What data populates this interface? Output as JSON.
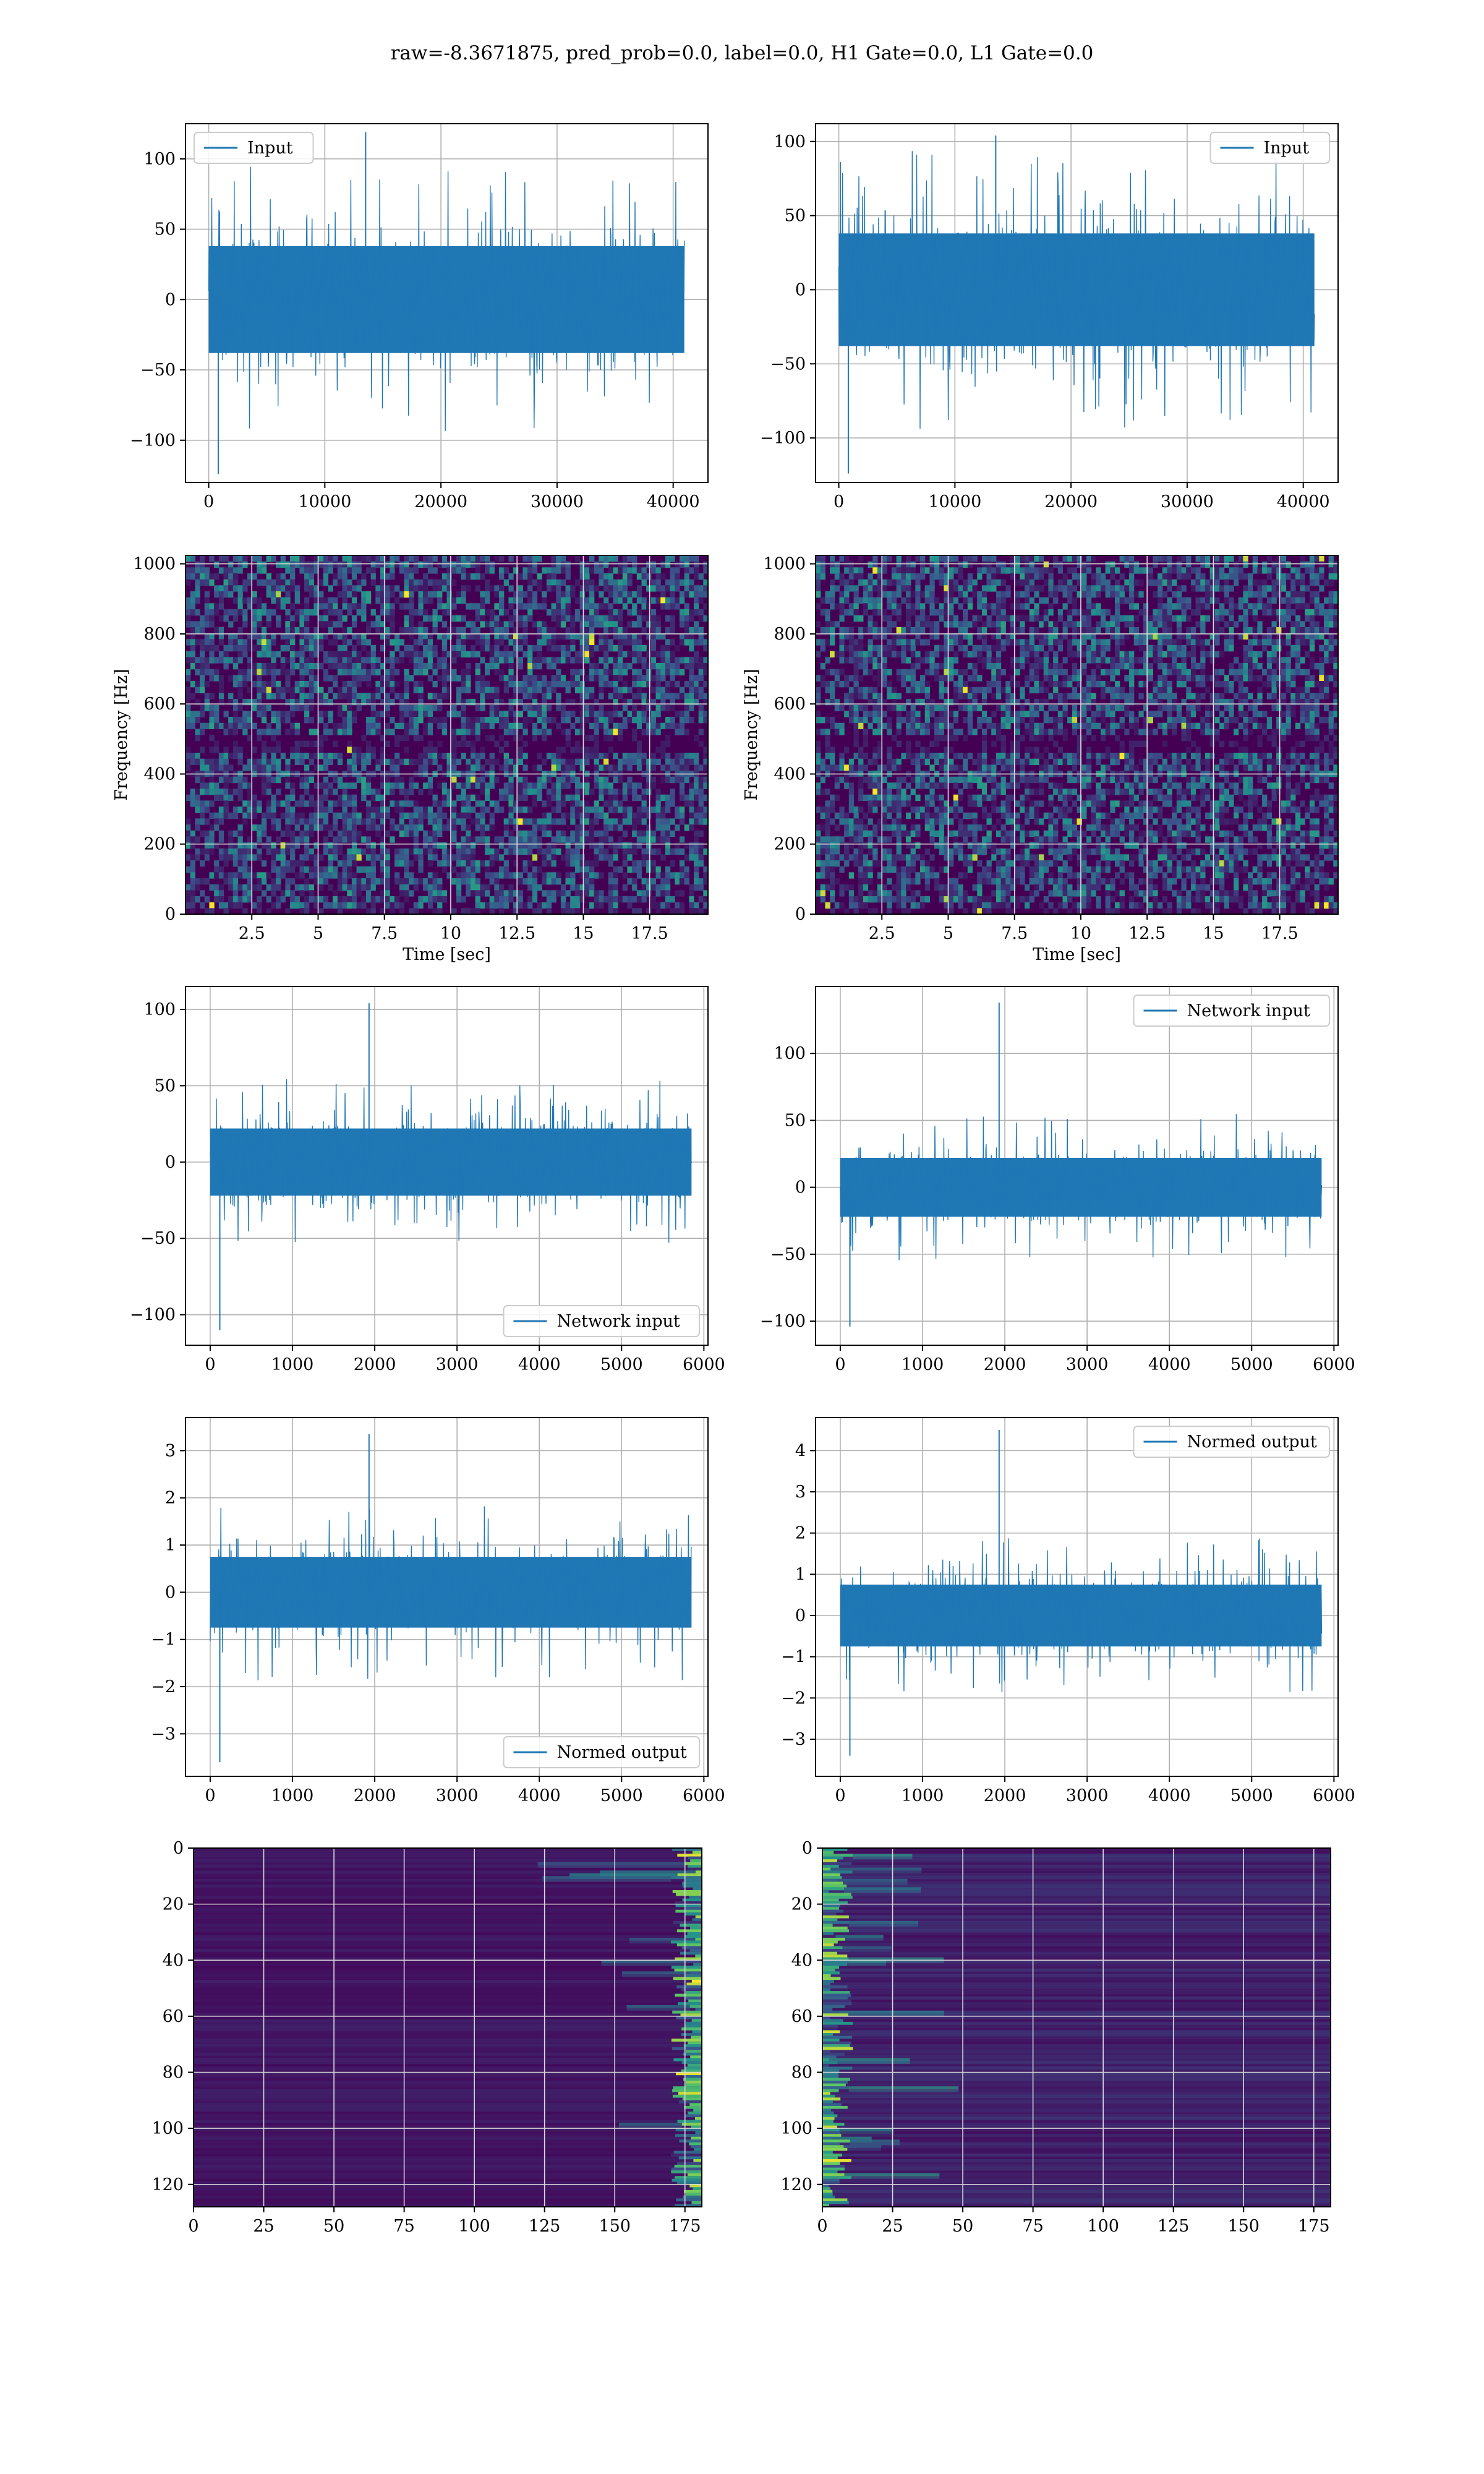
{
  "suptitle": "raw=-8.3671875, pred_prob=0.0, label=0.0, H1 Gate=0.0, L1 Gate=0.0",
  "colors": {
    "line": "#1f77b4",
    "grid": "#b0b0b0",
    "heat_low": "#440154",
    "heat_high": "#fde725"
  },
  "chart_data": [
    {
      "id": "row1-left",
      "type": "line",
      "legend": {
        "label": "Input",
        "position": "upper left"
      },
      "xlim": [
        -2000,
        43000
      ],
      "ylim": [
        -130,
        125
      ],
      "xticks": [
        0,
        10000,
        20000,
        30000,
        40000
      ],
      "yticks": [
        -100,
        -50,
        0,
        50,
        100
      ],
      "xlabel": "",
      "ylabel": "",
      "grid": true,
      "signal": {
        "x_start": 0,
        "x_end": 40960,
        "body_amplitude": 38,
        "peak_max": 119,
        "peak_min": -124
      }
    },
    {
      "id": "row1-right",
      "type": "line",
      "legend": {
        "label": "Input",
        "position": "upper right"
      },
      "xlim": [
        -2000,
        43000
      ],
      "ylim": [
        -130,
        112
      ],
      "xticks": [
        0,
        10000,
        20000,
        30000,
        40000
      ],
      "yticks": [
        -100,
        -50,
        0,
        50,
        100
      ],
      "xlabel": "",
      "ylabel": "",
      "grid": true,
      "signal": {
        "x_start": 0,
        "x_end": 40960,
        "body_amplitude": 38,
        "peak_max": 104,
        "peak_min": -124
      }
    },
    {
      "id": "row2-left",
      "type": "heatmap",
      "xlim": [
        0,
        19.7
      ],
      "ylim": [
        0,
        1024
      ],
      "xticks": [
        2.5,
        5.0,
        7.5,
        10.0,
        12.5,
        15.0,
        17.5
      ],
      "yticks": [
        0,
        200,
        400,
        600,
        800,
        1000
      ],
      "xlabel": "Time [sec]",
      "ylabel": "Frequency [Hz]",
      "grid": true,
      "colormap": "viridis",
      "dark_band_hz": 500
    },
    {
      "id": "row2-right",
      "type": "heatmap",
      "xlim": [
        0,
        19.7
      ],
      "ylim": [
        0,
        1024
      ],
      "xticks": [
        2.5,
        5.0,
        7.5,
        10.0,
        12.5,
        15.0,
        17.5
      ],
      "yticks": [
        0,
        200,
        400,
        600,
        800,
        1000
      ],
      "xlabel": "Time [sec]",
      "ylabel": "Frequency [Hz]",
      "grid": true,
      "colormap": "viridis",
      "dark_band_hz": 500
    },
    {
      "id": "row3-left",
      "type": "line",
      "legend": {
        "label": "Network input",
        "position": "lower right"
      },
      "xlim": [
        -300,
        6050
      ],
      "ylim": [
        -120,
        115
      ],
      "xticks": [
        0,
        1000,
        2000,
        3000,
        4000,
        5000,
        6000
      ],
      "yticks": [
        -100,
        -50,
        0,
        50,
        100
      ],
      "xlabel": "",
      "ylabel": "",
      "grid": true,
      "signal": {
        "x_start": 0,
        "x_end": 5850,
        "body_amplitude": 22,
        "peak_max": 104,
        "peak_min": -110
      }
    },
    {
      "id": "row3-right",
      "type": "line",
      "legend": {
        "label": "Network input",
        "position": "upper right"
      },
      "xlim": [
        -300,
        6050
      ],
      "ylim": [
        -118,
        150
      ],
      "xticks": [
        0,
        1000,
        2000,
        3000,
        4000,
        5000,
        6000
      ],
      "yticks": [
        -100,
        -50,
        0,
        50,
        100
      ],
      "xlabel": "",
      "ylabel": "",
      "grid": true,
      "signal": {
        "x_start": 0,
        "x_end": 5850,
        "body_amplitude": 22,
        "peak_max": 138,
        "peak_min": -104
      }
    },
    {
      "id": "row4-left",
      "type": "line",
      "legend": {
        "label": "Normed output",
        "position": "lower right"
      },
      "xlim": [
        -300,
        6050
      ],
      "ylim": [
        -3.9,
        3.7
      ],
      "xticks": [
        0,
        1000,
        2000,
        3000,
        4000,
        5000,
        6000
      ],
      "yticks": [
        -3,
        -2,
        -1,
        0,
        1,
        2,
        3
      ],
      "xlabel": "",
      "ylabel": "",
      "grid": true,
      "signal": {
        "x_start": 0,
        "x_end": 5850,
        "body_amplitude": 0.75,
        "peak_max": 3.35,
        "peak_min": -3.6
      }
    },
    {
      "id": "row4-right",
      "type": "line",
      "legend": {
        "label": "Normed output",
        "position": "upper right"
      },
      "xlim": [
        -300,
        6050
      ],
      "ylim": [
        -3.9,
        4.8
      ],
      "xticks": [
        0,
        1000,
        2000,
        3000,
        4000,
        5000,
        6000
      ],
      "yticks": [
        -3,
        -2,
        -1,
        0,
        1,
        2,
        3,
        4
      ],
      "xlabel": "",
      "ylabel": "",
      "grid": true,
      "signal": {
        "x_start": 0,
        "x_end": 5850,
        "body_amplitude": 0.75,
        "peak_max": 4.5,
        "peak_min": -3.4
      }
    },
    {
      "id": "row5-left",
      "type": "heatmap",
      "xlim": [
        0,
        181
      ],
      "ylim": [
        128,
        0
      ],
      "xticks": [
        0,
        25,
        50,
        75,
        100,
        125,
        150,
        175
      ],
      "yticks": [
        0,
        20,
        40,
        60,
        80,
        100,
        120
      ],
      "xlabel": "",
      "ylabel": "",
      "grid": true,
      "colormap": "viridis",
      "bright_edge": "right"
    },
    {
      "id": "row5-right",
      "type": "heatmap",
      "xlim": [
        0,
        181
      ],
      "ylim": [
        128,
        0
      ],
      "xticks": [
        0,
        25,
        50,
        75,
        100,
        125,
        150,
        175
      ],
      "yticks": [
        0,
        20,
        40,
        60,
        80,
        100,
        120
      ],
      "xlabel": "",
      "ylabel": "",
      "grid": true,
      "colormap": "viridis",
      "bright_edge": "left"
    }
  ]
}
